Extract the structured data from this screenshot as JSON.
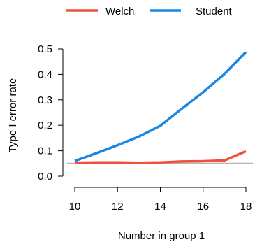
{
  "chart_data": {
    "type": "line",
    "xlabel": "Number in group 1",
    "ylabel": "Type I error rate",
    "xlim": [
      10,
      18
    ],
    "ylim": [
      0,
      0.5
    ],
    "x_ticks": [
      10,
      12,
      14,
      16,
      18
    ],
    "x_tick_labels": [
      "10",
      "12",
      "14",
      "16",
      "18"
    ],
    "y_ticks": [
      0.0,
      0.1,
      0.2,
      0.3,
      0.4,
      0.5
    ],
    "y_tick_labels": [
      "0.0",
      "0.1",
      "0.2",
      "0.3",
      "0.4",
      "0.5"
    ],
    "x": [
      10,
      11,
      12,
      13,
      14,
      15,
      16,
      17,
      18
    ],
    "series": [
      {
        "name": "Welch",
        "color": "#f0503c",
        "values": [
          0.053,
          0.054,
          0.054,
          0.053,
          0.054,
          0.058,
          0.059,
          0.062,
          0.098
        ]
      },
      {
        "name": "Student",
        "color": "#1a86e6",
        "values": [
          0.06,
          0.09,
          0.122,
          0.156,
          0.198,
          0.265,
          0.33,
          0.402,
          0.488
        ]
      }
    ],
    "reference_line": {
      "y": 0.05,
      "color": "#b4b4b4"
    },
    "legend_position": "top",
    "grid": false
  }
}
